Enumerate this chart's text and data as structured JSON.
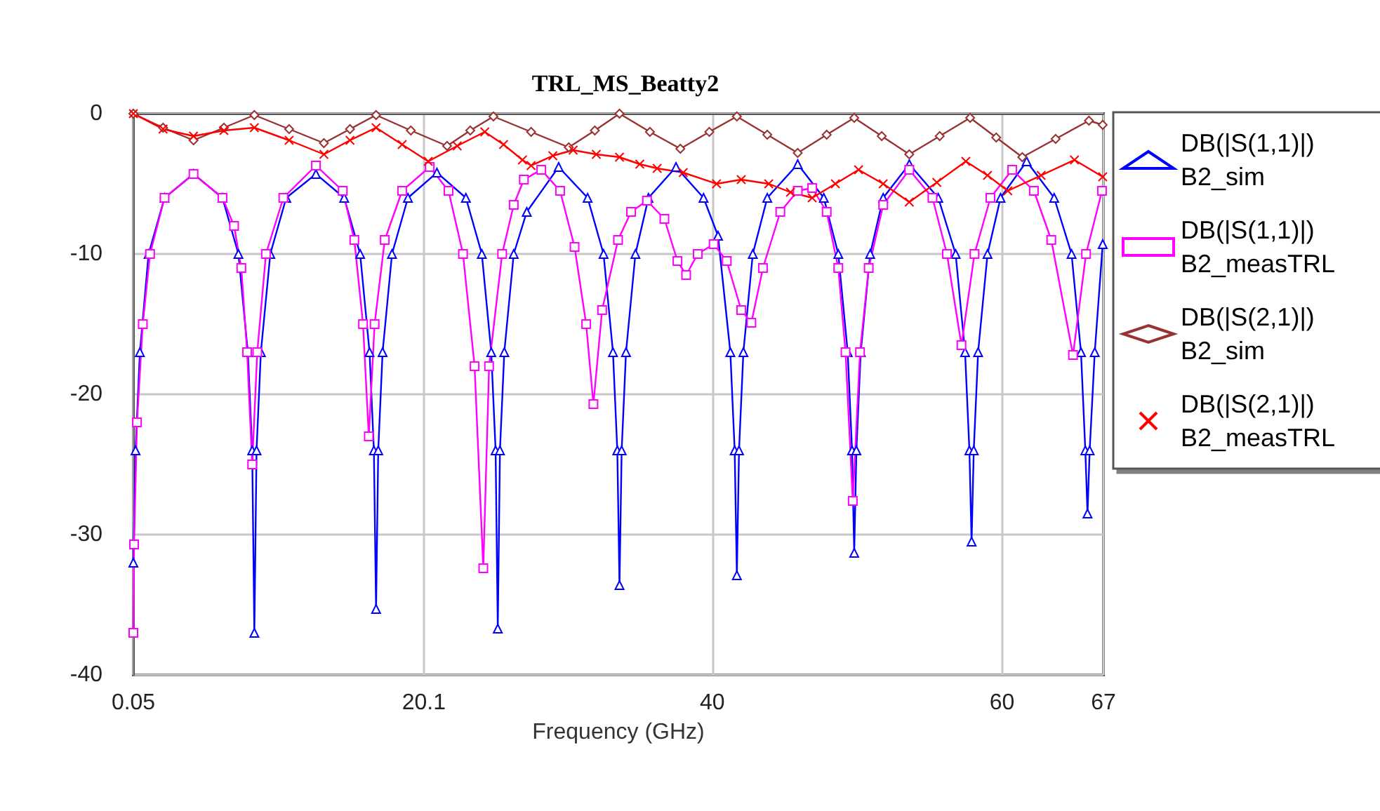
{
  "chart_data": {
    "type": "line",
    "title": "TRL_MS_Beatty2",
    "xlabel": "Frequency (GHz)",
    "xlim": [
      0.05,
      67
    ],
    "xticks": [
      0.05,
      20.1,
      40,
      60,
      67
    ],
    "ylim": [
      -40,
      0
    ],
    "yticks": [
      -40,
      -30,
      -20,
      -10,
      0
    ],
    "grid": true,
    "legend": "right",
    "line_style": "solid",
    "series": [
      {
        "name": "DB(|S(1,1)|) B2_sim",
        "color": "#0000ff",
        "marker": "triangle",
        "x": [
          0.05,
          0.2,
          0.5,
          1.1,
          2.2,
          4.2,
          6.2,
          7.3,
          7.95,
          8.25,
          8.4,
          8.55,
          8.85,
          9.5,
          10.6,
          12.65,
          14.6,
          15.7,
          16.35,
          16.65,
          16.8,
          16.95,
          17.25,
          17.9,
          19,
          21,
          23,
          24.1,
          24.75,
          25.05,
          25.2,
          25.35,
          25.65,
          26.3,
          27.2,
          29.4,
          31.4,
          32.5,
          33.15,
          33.45,
          33.6,
          33.75,
          34.05,
          34.7,
          35.6,
          37.5,
          39.4,
          40.4,
          41.25,
          41.55,
          41.7,
          41.85,
          42.15,
          42.8,
          43.8,
          45.9,
          47.7,
          48.7,
          49.35,
          49.65,
          49.8,
          49.95,
          50.25,
          50.9,
          51.8,
          53.6,
          55.6,
          56.8,
          57.45,
          57.75,
          57.9,
          58.05,
          58.35,
          59,
          59.9,
          61.7,
          63.6,
          64.8,
          65.45,
          65.75,
          65.9,
          66.05,
          66.4,
          66.95
        ],
        "values": [
          -32,
          -24,
          -17,
          -10,
          -6,
          -4.3,
          -6,
          -10,
          -17,
          -24,
          -37,
          -24,
          -17,
          -10,
          -6,
          -4.3,
          -6,
          -10,
          -17,
          -24,
          -35.3,
          -24,
          -17,
          -10,
          -6,
          -4.2,
          -6,
          -10,
          -17,
          -24,
          -36.7,
          -24,
          -17,
          -10,
          -7,
          -3.8,
          -6,
          -10,
          -17,
          -24,
          -33.6,
          -24,
          -17,
          -10,
          -6,
          -3.8,
          -6,
          -8.7,
          -17,
          -24,
          -32.9,
          -24,
          -17,
          -10,
          -6,
          -3.6,
          -6,
          -10,
          -17,
          -24,
          -31.3,
          -24,
          -17,
          -10,
          -6,
          -3.6,
          -6,
          -10,
          -17,
          -24,
          -30.5,
          -24,
          -17,
          -10,
          -6,
          -3.4,
          -6,
          -10,
          -17,
          -24,
          -28.5,
          -24,
          -17,
          -9.3
        ]
      },
      {
        "name": "DB(|S(1,1)|) B2_measTRL",
        "color": "#ff00ff",
        "marker": "square",
        "x": [
          0.05,
          0.1,
          0.3,
          0.7,
          1.2,
          2.2,
          4.2,
          6.2,
          7,
          7.5,
          7.9,
          8.25,
          8.6,
          9.2,
          10.4,
          12.65,
          14.5,
          15.3,
          15.9,
          16.3,
          16.7,
          17.4,
          18.6,
          20.5,
          21.8,
          22.8,
          23.6,
          24.2,
          24.6,
          25.5,
          26.3,
          27,
          28.2,
          29.5,
          30.5,
          31.3,
          31.8,
          32.4,
          33.5,
          34.4,
          35.5,
          36.7,
          37.6,
          38.2,
          39,
          40.1,
          41,
          42,
          42.7,
          43.5,
          44.7,
          45.9,
          46.9,
          47.9,
          48.7,
          49.2,
          49.7,
          50.2,
          50.8,
          51.8,
          53.6,
          55.2,
          56.2,
          57.2,
          58.1,
          59.2,
          60.7,
          62.2,
          63.4,
          64.9,
          65.8,
          66.9
        ],
        "values": [
          -37,
          -30.7,
          -22,
          -15,
          -10,
          -6,
          -4.3,
          -6,
          -8,
          -11,
          -17,
          -25,
          -17,
          -10,
          -6,
          -3.7,
          -5.5,
          -9,
          -15,
          -23,
          -15,
          -9,
          -5.5,
          -3.8,
          -5.5,
          -10,
          -18,
          -32.4,
          -18,
          -10,
          -6.5,
          -4.7,
          -4,
          -5.5,
          -9.5,
          -15,
          -20.7,
          -14,
          -9,
          -7,
          -6.2,
          -7.5,
          -10.5,
          -11.5,
          -10,
          -9.3,
          -10.5,
          -14,
          -14.9,
          -11,
          -7,
          -5.5,
          -5.3,
          -7,
          -11,
          -17,
          -27.6,
          -17,
          -11,
          -6.5,
          -4,
          -6,
          -10,
          -16.5,
          -10,
          -6,
          -4,
          -5.5,
          -9,
          -17.2,
          -10,
          -5.5
        ]
      },
      {
        "name": "DB(|S(2,1)|) B2_sim",
        "color": "#993333",
        "marker": "diamond",
        "x": [
          0.05,
          2.1,
          4.2,
          6.3,
          8.4,
          10.8,
          13.2,
          15,
          16.8,
          19.2,
          21.7,
          23.3,
          24.9,
          27.5,
          30.1,
          31.9,
          33.6,
          35.7,
          37.8,
          39.8,
          41.7,
          43.8,
          45.9,
          47.9,
          49.8,
          51.7,
          53.6,
          55.7,
          57.8,
          59.6,
          61.4,
          63.7,
          66,
          66.95
        ],
        "values": [
          0,
          -1,
          -1.9,
          -1,
          -0.1,
          -1.1,
          -2.1,
          -1.1,
          -0.1,
          -1.2,
          -2.3,
          -1.2,
          -0.2,
          -1.3,
          -2.4,
          -1.2,
          0,
          -1.3,
          -2.5,
          -1.3,
          -0.2,
          -1.5,
          -2.8,
          -1.5,
          -0.3,
          -1.6,
          -2.9,
          -1.6,
          -0.3,
          -1.7,
          -3.1,
          -1.8,
          -0.5,
          -0.8
        ]
      },
      {
        "name": "DB(|S(2,1)|) B2_measTRL",
        "color": "#ff0000",
        "marker": "cross",
        "x": [
          0.05,
          2.1,
          4.2,
          6.3,
          8.4,
          10.8,
          13.2,
          15,
          16.8,
          18.6,
          20.4,
          22.4,
          24.3,
          25.6,
          26.9,
          27.5,
          29,
          30.4,
          32,
          33.6,
          35,
          36.2,
          38,
          40.3,
          42,
          43.9,
          45.4,
          46.9,
          48.5,
          50.1,
          51.8,
          53.6,
          55.5,
          57.5,
          59,
          60.4,
          62.7,
          65,
          66.95
        ],
        "values": [
          0,
          -1.1,
          -1.6,
          -1.2,
          -1,
          -1.9,
          -2.9,
          -1.9,
          -1,
          -2.2,
          -3.4,
          -2.3,
          -1.3,
          -2.2,
          -3.3,
          -3.7,
          -3,
          -2.6,
          -2.9,
          -3.1,
          -3.6,
          -3.9,
          -4.2,
          -5,
          -4.7,
          -5,
          -5.6,
          -6,
          -5,
          -4,
          -5,
          -6.3,
          -4.9,
          -3.4,
          -4.4,
          -5.5,
          -4.4,
          -3.3,
          -4.5
        ]
      }
    ]
  }
}
